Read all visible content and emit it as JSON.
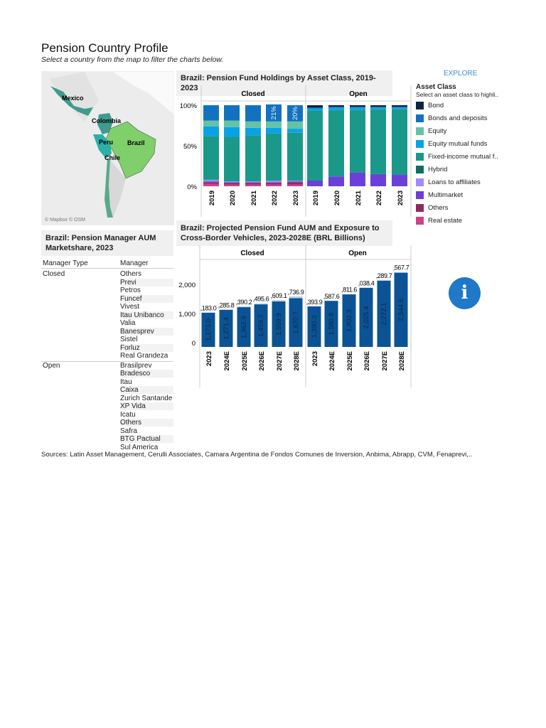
{
  "header": {
    "title": "Pension Country Profile",
    "subtitle": "Select a country from the map to filter the charts below."
  },
  "map": {
    "countries": [
      {
        "name": "Mexico",
        "color": "#3f9a8f"
      },
      {
        "name": "Colombia",
        "color": "#3f9a8f"
      },
      {
        "name": "Peru",
        "color": "#2bb0a8"
      },
      {
        "name": "Brazil",
        "color": "#7fcf6a"
      },
      {
        "name": "Chile",
        "color": "#5aa98a"
      }
    ],
    "attribution": "© Mapbox © OSM"
  },
  "explore_label": "EXPLORE",
  "legend": {
    "title": "Asset Class",
    "subtitle": "Select an asset class to highli..",
    "items": [
      {
        "label": "Bond",
        "color": "#0b2540"
      },
      {
        "label": "Bonds and deposits",
        "color": "#1272c0"
      },
      {
        "label": "Equity",
        "color": "#66c2a5"
      },
      {
        "label": "Equity mutual funds",
        "color": "#0aa2e6"
      },
      {
        "label": "Fixed-income mutual f..",
        "color": "#1a998a"
      },
      {
        "label": "Hybrid",
        "color": "#0e6e62"
      },
      {
        "label": "Loans to affiliates",
        "color": "#9b8cff"
      },
      {
        "label": "Multimarket",
        "color": "#6a40d8"
      },
      {
        "label": "Others",
        "color": "#8e2a5e"
      },
      {
        "label": "Real estate",
        "color": "#d0408a"
      }
    ]
  },
  "chart_data": [
    {
      "type": "bar",
      "stacked": true,
      "title": "Brazil: Pension Fund Holdings by Asset Class, 2019-2023",
      "panels": [
        "Closed",
        "Open"
      ],
      "categories": [
        "2019",
        "2020",
        "2021",
        "2022",
        "2023"
      ],
      "yticks": [
        "0%",
        "50%",
        "100%"
      ],
      "ylim": [
        0,
        100
      ],
      "closed": {
        "Real estate": [
          3,
          2,
          2,
          2,
          2
        ],
        "Others": [
          2,
          2,
          2,
          2,
          3
        ],
        "Multimarket": [
          1,
          1,
          1,
          1,
          1
        ],
        "Loans to affiliates": [
          2,
          1,
          1,
          2,
          1
        ],
        "Fixed-income mutual f..": [
          54,
          55,
          57,
          58,
          59
        ],
        "Equity mutual funds": [
          12,
          12,
          9,
          7,
          5
        ],
        "Equity": [
          7,
          8,
          8,
          8,
          9
        ],
        "Bonds and deposits": [
          19,
          19,
          20,
          21,
          20
        ]
      },
      "closed_labels": {
        "Fixed-income mutual f..": [
          "54%",
          "55%",
          "57%",
          "58%",
          "59%"
        ],
        "Bonds and deposits": [
          "",
          "",
          "",
          "21%",
          "20%"
        ]
      },
      "open": {
        "Multimarket": [
          7,
          12,
          17,
          15,
          14
        ],
        "Fixed-income mutual f..": [
          86,
          82,
          77,
          80,
          81
        ],
        "Equity mutual funds": [
          3,
          3,
          3,
          2,
          2
        ],
        "Bonds and deposits": [
          1,
          1,
          1,
          1,
          1
        ],
        "Bond": [
          3,
          2,
          2,
          2,
          2
        ]
      },
      "open_labels": {
        "Fixed-income mutual f..": [
          "86%",
          "82%",
          "77%",
          "80%",
          "81%"
        ]
      }
    },
    {
      "type": "bar",
      "title": "Brazil: Projected Pension Fund AUM and Exposure to Cross-Border Vehicles, 2023-2028E (BRL Billions)",
      "panels": [
        "Closed",
        "Open"
      ],
      "categories": [
        "2023",
        "2024E",
        "2025E",
        "2026E",
        "2027E",
        "2028E"
      ],
      "yticks": [
        "0",
        "1,000",
        "2,000"
      ],
      "ylim": [
        0,
        2700
      ],
      "closed": {
        "values": [
          1173.0,
          1271.4,
          1362.9,
          1459.7,
          1559.9,
          1670.7
        ],
        "totals": [
          1183.0,
          1285.8,
          1390.2,
          1495.6,
          1609.1,
          1736.9
        ],
        "value_labels": [
          "1,173.0",
          "1,271.4",
          "1,362.9",
          "1,459.7",
          "1,559.9",
          "1,670.7"
        ],
        "total_labels": [
          ",183.0",
          ",285.8",
          ",390.2",
          ",495.6",
          ",609.1",
          ",736.9"
        ]
      },
      "open": {
        "values": [
          1390.3,
          1580.8,
          1802.3,
          2025.4,
          2272.1,
          2544.6
        ],
        "totals": [
          1393.9,
          1587.6,
          1811.6,
          2038.4,
          2289.7,
          2567.7
        ],
        "value_labels": [
          "1,390.3",
          "1,580.8",
          "1,802.3",
          "2,025.4",
          "2,272.1",
          "2,544.6"
        ],
        "total_labels": [
          ",393.9",
          ",587.6",
          ",811.6",
          ",038.4",
          ",289.7",
          ",567.7"
        ]
      },
      "color": "#0b5394"
    }
  ],
  "manager_table": {
    "title": "Brazil: Pension Manager AUM Marketshare, 2023",
    "headers": [
      "Manager Type",
      "Manager"
    ],
    "groups": [
      {
        "type": "Closed",
        "managers": [
          "Others",
          "Previ",
          "Petros",
          "Funcef",
          "Vivest",
          "Itau Unibanco",
          "Valia",
          "Banesprev",
          "Sistel",
          "Forluz",
          "Real Grandeza"
        ]
      },
      {
        "type": "Open",
        "managers": [
          "Brasilprev",
          "Bradesco",
          "Itau",
          "Caixa",
          "Zurich Santande",
          "XP Vida",
          "Icatu",
          "Others",
          "Safra",
          "BTG Pactual",
          "Sul America"
        ]
      }
    ]
  },
  "info_icon": "info-icon",
  "sources": "Sources: Latin Asset Management, Cerulli Associates, Camara Argentina de Fondos Comunes de Inversion, Anbima,  Abrapp, CVM, Fenaprevi,.."
}
